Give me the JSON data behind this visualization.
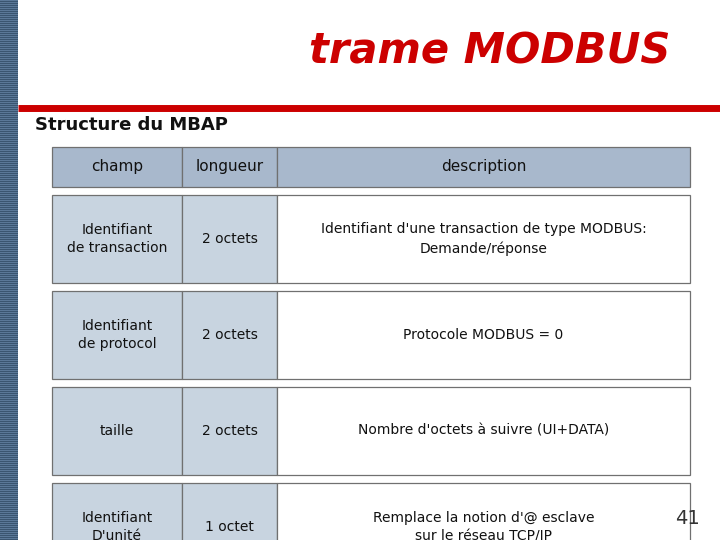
{
  "title": "trame MODBUS",
  "title_color": "#CC0000",
  "subtitle": "Structure du MBAP",
  "background_color": "#FFFFFF",
  "left_bar_color": "#4A6080",
  "header_bg": "#A8B8CC",
  "row_bg_light": "#C8D4E0",
  "row_bg_white": "#FFFFFF",
  "border_color": "#707070",
  "header_row": [
    "champ",
    "longueur",
    "description"
  ],
  "rows": [
    {
      "champ": "Identifiant\nde transaction",
      "longueur": "2 octets",
      "description": "Identifiant d'une transaction de type MODBUS:\nDemande/réponse"
    },
    {
      "champ": "Identifiant\nde protocol",
      "longueur": "2 octets",
      "description": "Protocole MODBUS = 0"
    },
    {
      "champ": "taille",
      "longueur": "2 octets",
      "description": "Nombre d'octets à suivre (UI+DATA)"
    },
    {
      "champ": "Identifiant\nD'unité",
      "longueur": "1 octet",
      "description": "Remplace la notion d'@ esclave\nsur le réseau TCP/IP"
    }
  ],
  "page_number": "41",
  "red_line_color": "#CC0000",
  "fig_width": 7.2,
  "fig_height": 5.4,
  "fig_dpi": 100
}
